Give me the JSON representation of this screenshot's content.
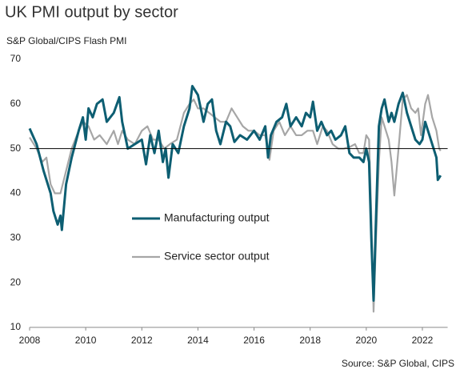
{
  "chart_data": {
    "type": "line",
    "title": "UK PMI output by sector",
    "subtitle": "S&P Global/CIPS Flash PMI",
    "source": "Source: S&P Global, CIPS",
    "xlim": [
      2008,
      2022.9
    ],
    "xticks": [
      2008,
      2010,
      2012,
      2014,
      2016,
      2018,
      2020,
      2022
    ],
    "ylim": [
      10,
      70
    ],
    "yticks": [
      10,
      20,
      30,
      40,
      50,
      60,
      70
    ],
    "reference_line": 50,
    "series": [
      {
        "name": "Manufacturing output",
        "color": "#0d5e72",
        "x": [
          2008.0,
          2008.25,
          2008.5,
          2008.6,
          2008.75,
          2008.85,
          2009.0,
          2009.1,
          2009.15,
          2009.3,
          2009.5,
          2009.75,
          2009.9,
          2010.0,
          2010.1,
          2010.25,
          2010.4,
          2010.6,
          2010.75,
          2011.0,
          2011.2,
          2011.3,
          2011.5,
          2011.75,
          2012.0,
          2012.15,
          2012.3,
          2012.45,
          2012.6,
          2012.75,
          2012.85,
          2012.95,
          2013.1,
          2013.3,
          2013.5,
          2013.7,
          2013.8,
          2014.0,
          2014.2,
          2014.35,
          2014.5,
          2014.65,
          2014.8,
          2015.0,
          2015.15,
          2015.3,
          2015.5,
          2015.75,
          2016.0,
          2016.2,
          2016.4,
          2016.5,
          2016.6,
          2016.8,
          2017.0,
          2017.15,
          2017.3,
          2017.5,
          2017.7,
          2017.85,
          2018.0,
          2018.1,
          2018.25,
          2018.4,
          2018.6,
          2018.75,
          2018.9,
          2019.1,
          2019.25,
          2019.4,
          2019.55,
          2019.75,
          2019.9,
          2020.0,
          2020.1,
          2020.18,
          2020.26,
          2020.35,
          2020.45,
          2020.55,
          2020.65,
          2020.8,
          2020.9,
          2021.0,
          2021.15,
          2021.3,
          2021.45,
          2021.6,
          2021.75,
          2021.9,
          2022.0,
          2022.1,
          2022.25,
          2022.4,
          2022.5,
          2022.55,
          2022.65
        ],
        "values": [
          54.5,
          51,
          45,
          43,
          40,
          36,
          33,
          35,
          31.8,
          42,
          48,
          54,
          57,
          52,
          59,
          57,
          60,
          61,
          56,
          58,
          61.5,
          56,
          50,
          51,
          52,
          46.5,
          53,
          49,
          54,
          47,
          50,
          43.5,
          51,
          49,
          55,
          59,
          64,
          62,
          56,
          60,
          61,
          54,
          51,
          56,
          55,
          51.5,
          53,
          52,
          54,
          52,
          55,
          48,
          53,
          56,
          57,
          60,
          55,
          57,
          55,
          58,
          57,
          60.5,
          54,
          56,
          53,
          54,
          52,
          53,
          55,
          49,
          48,
          48,
          47,
          50,
          47,
          30,
          16,
          35,
          55,
          59,
          61,
          56,
          58,
          56,
          60,
          62.5,
          58,
          55,
          52,
          51,
          52,
          56,
          53,
          50,
          48,
          43,
          44
        ]
      },
      {
        "name": "Service sector output",
        "color": "#a6a6a6",
        "x": [
          2008.0,
          2008.25,
          2008.45,
          2008.6,
          2008.75,
          2008.9,
          2009.1,
          2009.3,
          2009.5,
          2009.75,
          2009.9,
          2010.1,
          2010.3,
          2010.5,
          2010.75,
          2011.0,
          2011.15,
          2011.3,
          2011.5,
          2011.75,
          2012.0,
          2012.2,
          2012.4,
          2012.6,
          2012.8,
          2013.0,
          2013.25,
          2013.5,
          2013.7,
          2013.85,
          2014.0,
          2014.2,
          2014.4,
          2014.6,
          2014.8,
          2015.0,
          2015.2,
          2015.4,
          2015.6,
          2015.8,
          2016.0,
          2016.2,
          2016.4,
          2016.55,
          2016.7,
          2016.9,
          2017.1,
          2017.3,
          2017.5,
          2017.7,
          2017.9,
          2018.1,
          2018.25,
          2018.45,
          2018.6,
          2018.8,
          2019.0,
          2019.2,
          2019.45,
          2019.6,
          2019.75,
          2019.9,
          2020.0,
          2020.1,
          2020.18,
          2020.26,
          2020.35,
          2020.45,
          2020.55,
          2020.65,
          2020.8,
          2020.9,
          2021.0,
          2021.15,
          2021.3,
          2021.45,
          2021.6,
          2021.75,
          2021.85,
          2021.95,
          2022.1,
          2022.2,
          2022.35,
          2022.5,
          2022.6,
          2022.65
        ],
        "values": [
          52.5,
          50,
          47,
          48,
          42,
          40,
          40,
          45,
          50,
          54,
          56,
          55,
          52,
          53,
          51,
          54,
          51,
          54,
          52,
          51,
          54,
          55,
          52,
          52,
          50,
          51,
          52,
          58,
          60,
          61,
          59,
          59,
          58,
          57,
          56,
          56,
          59,
          57,
          55,
          54,
          54,
          53,
          53,
          47.5,
          54,
          56,
          53,
          55,
          53,
          53,
          54,
          54,
          51,
          55,
          54,
          51,
          50,
          50,
          50.5,
          51,
          49,
          49,
          53,
          52,
          35,
          13.5,
          30,
          47,
          57,
          55,
          52,
          47,
          39.5,
          50,
          61,
          62,
          59,
          58,
          59,
          53,
          60,
          62,
          57,
          54,
          50,
          49.5
        ]
      }
    ]
  }
}
